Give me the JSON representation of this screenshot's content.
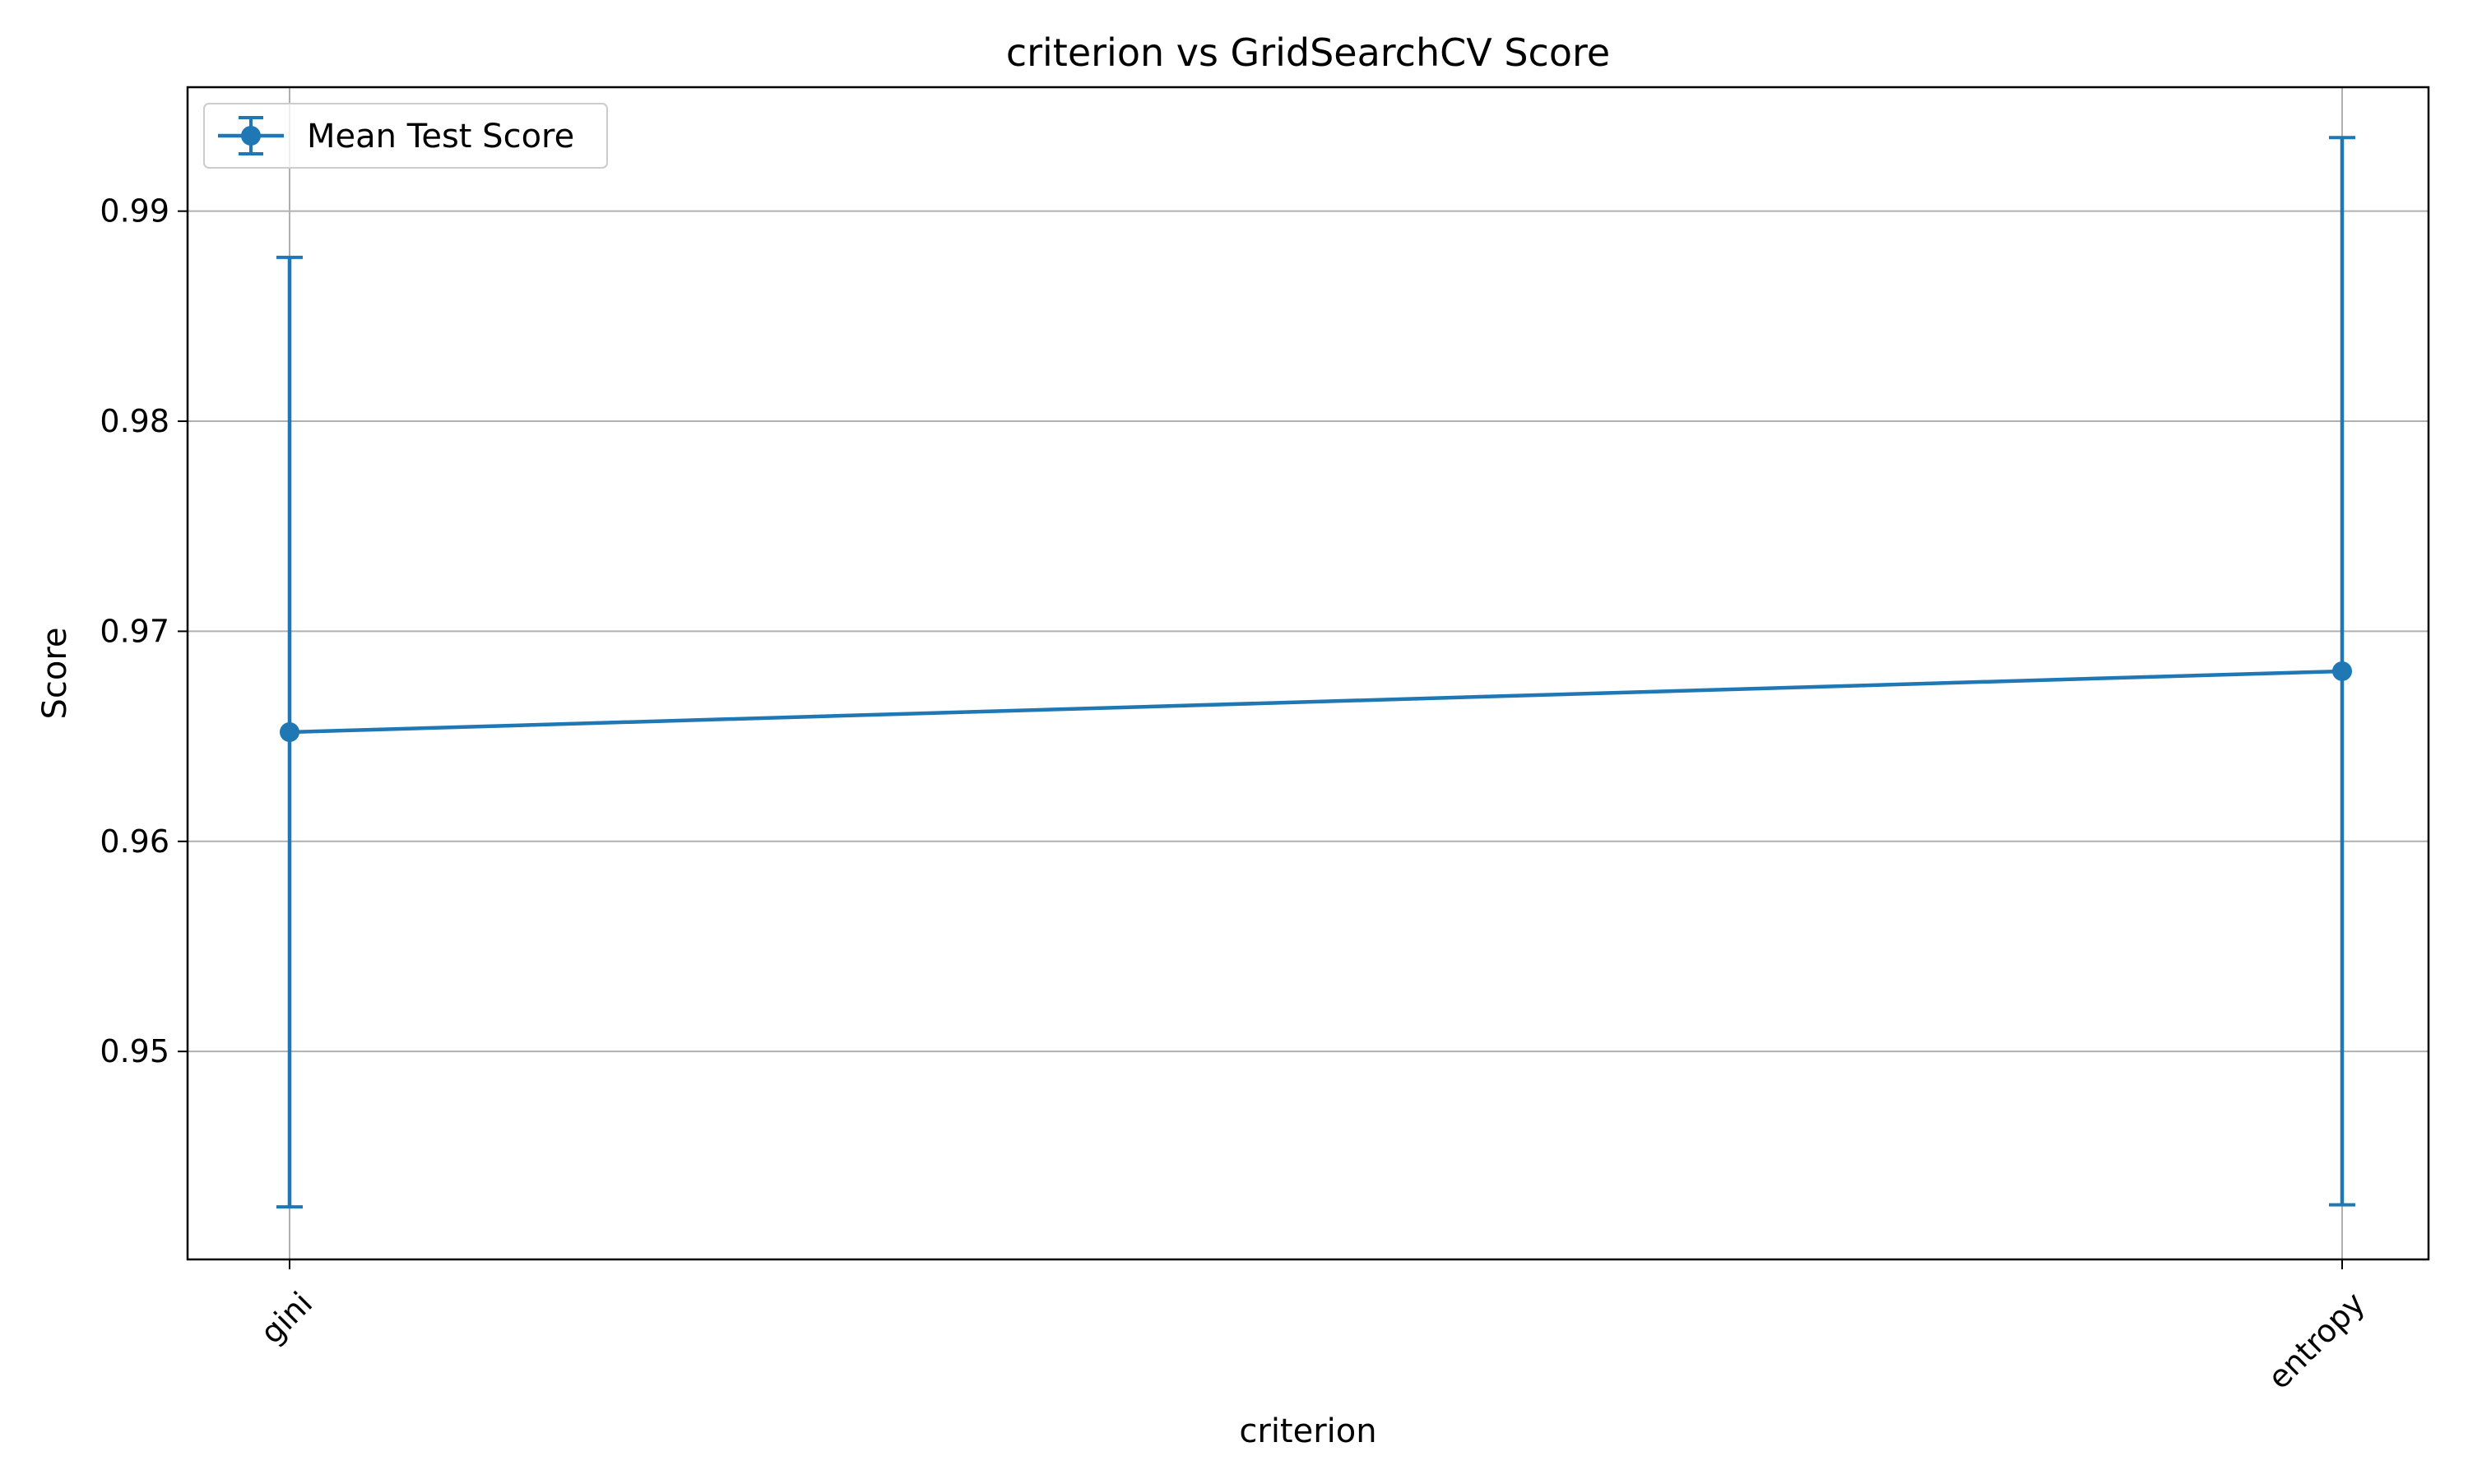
{
  "chart_data": {
    "type": "line",
    "title": "criterion vs GridSearchCV Score",
    "xlabel": "criterion",
    "ylabel": "Score",
    "categories": [
      "gini",
      "entropy"
    ],
    "series": [
      {
        "name": "Mean Test Score",
        "values": [
          0.9652,
          0.9681
        ],
        "error": [
          0.0226,
          0.0254
        ],
        "color": "#1f77b4",
        "marker": "circle"
      }
    ],
    "ylim": [
      0.9401,
      0.9959
    ],
    "yticks": [
      0.95,
      0.96,
      0.97,
      0.98,
      0.99
    ],
    "ytick_labels": [
      "0.95",
      "0.96",
      "0.97",
      "0.98",
      "0.99"
    ],
    "grid": true,
    "legend_position": "upper-left",
    "x_tick_rotation": 45
  }
}
